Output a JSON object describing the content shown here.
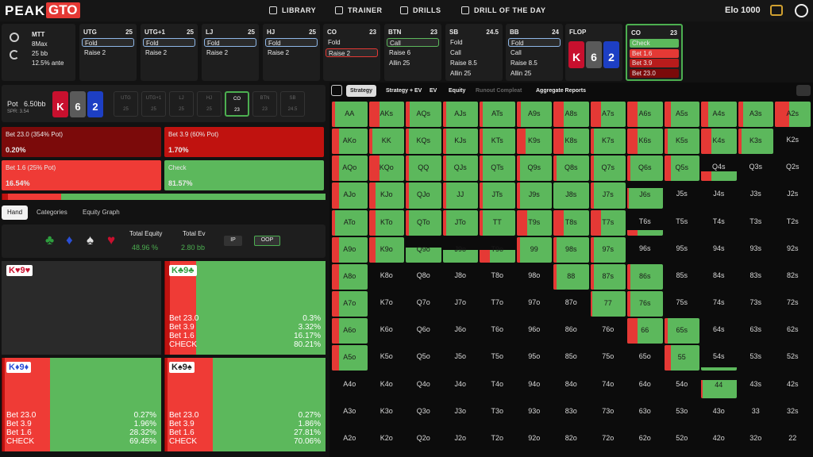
{
  "nav": {
    "logo_a": "PEAK",
    "logo_b": "GTO",
    "items": [
      "LIBRARY",
      "TRAINER",
      "DRILLS",
      "DRILL OF THE DAY"
    ],
    "elo": "Elo 1000"
  },
  "settings": [
    "MTT",
    "8Max",
    "25 bb",
    "12.5% ante"
  ],
  "positions": [
    {
      "name": "UTG",
      "stack": 25,
      "actions": [
        "Fold",
        "Raise 2"
      ],
      "selected": 0,
      "highlight": "#8fb8e8"
    },
    {
      "name": "UTG+1",
      "stack": 25,
      "actions": [
        "Fold",
        "Raise 2"
      ],
      "selected": 0,
      "highlight": "#8fb8e8"
    },
    {
      "name": "LJ",
      "stack": 25,
      "actions": [
        "Fold",
        "Raise 2"
      ],
      "selected": 0,
      "highlight": "#8fb8e8"
    },
    {
      "name": "HJ",
      "stack": 25,
      "actions": [
        "Fold",
        "Raise 2"
      ],
      "selected": 0,
      "highlight": "#8fb8e8"
    },
    {
      "name": "CO",
      "stack": 23,
      "actions": [
        "Fold",
        "Raise 2"
      ],
      "selected": 1,
      "highlight": "#e53935"
    },
    {
      "name": "BTN",
      "stack": 23,
      "actions": [
        "Call",
        "Raise 6",
        "Allin 25"
      ],
      "selected": 0,
      "highlight": "#5cb85c"
    },
    {
      "name": "SB",
      "stack": 24.5,
      "actions": [
        "Fold",
        "Call",
        "Raise 8.5",
        "Allin 25"
      ]
    },
    {
      "name": "BB",
      "stack": 24,
      "actions": [
        "Fold",
        "Call",
        "Raise 8.5",
        "Allin 25"
      ],
      "selected": 0,
      "highlight": "#8fb8e8"
    }
  ],
  "flop": {
    "name": "FLOP",
    "cards": [
      {
        "rank": "K",
        "color": "#c8102e"
      },
      {
        "rank": "6",
        "color": "#5a5a5a"
      },
      {
        "rank": "2",
        "color": "#1d3fc4"
      }
    ]
  },
  "current": {
    "name": "CO",
    "stack": 23,
    "actions": [
      "Check",
      "Bet 1.6",
      "Bet 3.9",
      "Bet 23.0"
    ],
    "action_colors": [
      "#5cb85c",
      "#e53935",
      "#b71c1c",
      "#7b0a0a"
    ],
    "border": "#4caf50"
  },
  "pot": {
    "label": "Pot",
    "value": "6.50bb",
    "spr": "SPR: 3.54"
  },
  "actions": [
    {
      "label": "Bet 23.0 (354% Pot)",
      "value": 0.2,
      "value_label": "0.20%",
      "color": "#7b0a0a"
    },
    {
      "label": "Bet 3.9 (60% Pot)",
      "value": 1.7,
      "value_label": "1.70%",
      "color": "#c0120f"
    },
    {
      "label": "Bet 1.6 (25% Pot)",
      "value": 16.54,
      "value_label": "16.54%",
      "color": "#ef3b36"
    },
    {
      "label": "Check",
      "value": 81.57,
      "value_label": "81.57%",
      "color": "#5cb85c"
    }
  ],
  "tabs": [
    "Hand",
    "Categories",
    "Equity Graph"
  ],
  "equity": {
    "suits": [
      {
        "s": "♣",
        "color": "#2e9e3e"
      },
      {
        "s": "♦",
        "color": "#2a4fd6"
      },
      {
        "s": "♠",
        "color": "#e0e0e0"
      },
      {
        "s": "♥",
        "color": "#c8102e"
      }
    ],
    "total_equity_label": "Total Equity",
    "total_equity": "48.96 %",
    "total_ev_label": "Total Ev",
    "total_ev": "2.80 bb",
    "ip": "IP",
    "oop": "OOP"
  },
  "hands": [
    {
      "hand": "K♥9♥",
      "color": "#c8102e"
    },
    {
      "hand": "K♣9♣",
      "color": "#2e9e3e",
      "lines": [
        {
          "name": "Bet 23.0",
          "value": 0.3,
          "value_label": "0.3%"
        },
        {
          "name": "Bet 3.9",
          "value": 3.32,
          "value_label": "3.32%"
        },
        {
          "name": "Bet 1.6",
          "value": 16.17,
          "value_label": "16.17%"
        },
        {
          "name": "CHECK",
          "value": 80.21,
          "value_label": "80.21%"
        }
      ]
    },
    {
      "hand": "K♦9♦",
      "color": "#2a4fd6",
      "lines": [
        {
          "name": "Bet 23.0",
          "value": 0.27,
          "value_label": "0.27%"
        },
        {
          "name": "Bet 3.9",
          "value": 1.96,
          "value_label": "1.96%"
        },
        {
          "name": "Bet 1.6",
          "value": 28.32,
          "value_label": "28.32%"
        },
        {
          "name": "CHECK",
          "value": 69.45,
          "value_label": "69.45%"
        }
      ]
    },
    {
      "hand": "K♠9♠",
      "color": "#222222",
      "lines": [
        {
          "name": "Bet 23.0",
          "value": 0.27,
          "value_label": "0.27%"
        },
        {
          "name": "Bet 3.9",
          "value": 1.86,
          "value_label": "1.86%"
        },
        {
          "name": "Bet 1.6",
          "value": 27.81,
          "value_label": "27.81%"
        },
        {
          "name": "CHECK",
          "value": 70.06,
          "value_label": "70.06%"
        }
      ]
    }
  ],
  "line_colors": [
    "#7b0a0a",
    "#c0120f",
    "#ef3b36",
    "#5cb85c"
  ],
  "report_tabs": [
    "Strategy",
    "Strategy + EV",
    "EV",
    "Equity",
    "Runout Compleat",
    "Aggregate Reports"
  ],
  "grid": {
    "rows": [
      [
        "AA",
        "AKs",
        "AQs",
        "AJs",
        "ATs",
        "A9s",
        "A8s",
        "A7s",
        "A6s",
        "A5s",
        "A4s",
        "A3s",
        "A2s"
      ],
      [
        "AKo",
        "KK",
        "KQs",
        "KJs",
        "KTs",
        "K9s",
        "K8s",
        "K7s",
        "K6s",
        "K5s",
        "K4s",
        "K3s",
        "K2s"
      ],
      [
        "AQo",
        "KQo",
        "QQ",
        "QJs",
        "QTs",
        "Q9s",
        "Q8s",
        "Q7s",
        "Q6s",
        "Q5s",
        "Q4s",
        "Q3s",
        "Q2s"
      ],
      [
        "AJo",
        "KJo",
        "QJo",
        "JJ",
        "JTs",
        "J9s",
        "J8s",
        "J7s",
        "J6s",
        "J5s",
        "J4s",
        "J3s",
        "J2s"
      ],
      [
        "ATo",
        "KTo",
        "QTo",
        "JTo",
        "TT",
        "T9s",
        "T8s",
        "T7s",
        "T6s",
        "T5s",
        "T4s",
        "T3s",
        "T2s"
      ],
      [
        "A9o",
        "K9o",
        "Q9o",
        "J9o",
        "T9o",
        "99",
        "98s",
        "97s",
        "96s",
        "95s",
        "94s",
        "93s",
        "92s"
      ],
      [
        "A8o",
        "K8o",
        "Q8o",
        "J8o",
        "T8o",
        "98o",
        "88",
        "87s",
        "86s",
        "85s",
        "84s",
        "83s",
        "82s"
      ],
      [
        "A7o",
        "K7o",
        "Q7o",
        "J7o",
        "T7o",
        "97o",
        "87o",
        "77",
        "76s",
        "75s",
        "74s",
        "73s",
        "72s"
      ],
      [
        "A6o",
        "K6o",
        "Q6o",
        "J6o",
        "T6o",
        "96o",
        "86o",
        "76o",
        "66",
        "65s",
        "64s",
        "63s",
        "62s"
      ],
      [
        "A5o",
        "K5o",
        "Q5o",
        "J5o",
        "T5o",
        "95o",
        "85o",
        "75o",
        "65o",
        "55",
        "54s",
        "53s",
        "52s"
      ],
      [
        "A4o",
        "K4o",
        "Q4o",
        "J4o",
        "T4o",
        "94o",
        "84o",
        "74o",
        "64o",
        "54o",
        "44",
        "43s",
        "42s"
      ],
      [
        "A3o",
        "K3o",
        "Q3o",
        "J3o",
        "T3o",
        "93o",
        "83o",
        "73o",
        "63o",
        "53o",
        "43o",
        "33",
        "32s"
      ],
      [
        "A2o",
        "K2o",
        "Q2o",
        "J2o",
        "T2o",
        "92o",
        "82o",
        "72o",
        "62o",
        "52o",
        "42o",
        "32o",
        "22"
      ]
    ],
    "range": [
      [
        100,
        100,
        100,
        100,
        100,
        100,
        100,
        100,
        100,
        100,
        100,
        100,
        100
      ],
      [
        100,
        100,
        100,
        100,
        100,
        100,
        100,
        100,
        100,
        100,
        100,
        100,
        0
      ],
      [
        100,
        100,
        100,
        100,
        100,
        100,
        100,
        100,
        100,
        100,
        40,
        0,
        0
      ],
      [
        100,
        100,
        100,
        100,
        100,
        100,
        100,
        100,
        80,
        0,
        0,
        0,
        0
      ],
      [
        100,
        100,
        100,
        100,
        100,
        100,
        100,
        100,
        20,
        0,
        0,
        0,
        0
      ],
      [
        100,
        100,
        60,
        50,
        50,
        100,
        100,
        100,
        0,
        0,
        0,
        0,
        0
      ],
      [
        100,
        0,
        0,
        0,
        0,
        0,
        100,
        100,
        100,
        0,
        0,
        0,
        0
      ],
      [
        100,
        0,
        0,
        0,
        0,
        0,
        0,
        100,
        100,
        0,
        0,
        0,
        0
      ],
      [
        100,
        0,
        0,
        0,
        0,
        0,
        0,
        0,
        100,
        100,
        0,
        0,
        0
      ],
      [
        100,
        0,
        0,
        0,
        0,
        0,
        0,
        0,
        0,
        100,
        15,
        0,
        0
      ],
      [
        0,
        0,
        0,
        0,
        0,
        0,
        0,
        0,
        0,
        0,
        70,
        0,
        0
      ],
      [
        0,
        0,
        0,
        0,
        0,
        0,
        0,
        0,
        0,
        0,
        0,
        0,
        0
      ],
      [
        0,
        0,
        0,
        0,
        0,
        0,
        0,
        0,
        0,
        0,
        0,
        0,
        0
      ]
    ],
    "bet": [
      [
        8,
        30,
        12,
        10,
        10,
        12,
        30,
        30,
        30,
        20,
        20,
        15,
        40
      ],
      [
        20,
        10,
        10,
        10,
        10,
        25,
        30,
        10,
        30,
        10,
        30,
        10,
        0
      ],
      [
        20,
        30,
        10,
        10,
        10,
        10,
        10,
        10,
        10,
        20,
        30,
        0,
        0
      ],
      [
        20,
        20,
        10,
        10,
        10,
        10,
        0,
        10,
        5,
        0,
        0,
        0,
        0
      ],
      [
        10,
        20,
        10,
        10,
        10,
        30,
        30,
        30,
        30,
        0,
        0,
        0,
        0
      ],
      [
        20,
        20,
        0,
        0,
        30,
        10,
        10,
        10,
        0,
        0,
        0,
        0,
        0
      ],
      [
        20,
        0,
        0,
        0,
        0,
        0,
        10,
        10,
        10,
        0,
        0,
        0,
        0
      ],
      [
        20,
        0,
        0,
        0,
        0,
        0,
        0,
        5,
        10,
        0,
        0,
        0,
        0
      ],
      [
        20,
        0,
        0,
        0,
        0,
        0,
        0,
        0,
        30,
        10,
        0,
        0,
        0
      ],
      [
        20,
        0,
        0,
        0,
        0,
        0,
        0,
        0,
        0,
        20,
        0,
        0,
        0
      ],
      [
        0,
        0,
        0,
        0,
        0,
        0,
        0,
        0,
        0,
        0,
        5,
        0,
        0
      ],
      [
        0,
        0,
        0,
        0,
        0,
        0,
        0,
        0,
        0,
        0,
        0,
        0,
        0
      ],
      [
        0,
        0,
        0,
        0,
        0,
        0,
        0,
        0,
        0,
        0,
        0,
        0,
        0
      ]
    ],
    "bet_color": "#e53935",
    "check_color": "#5cb85c"
  }
}
